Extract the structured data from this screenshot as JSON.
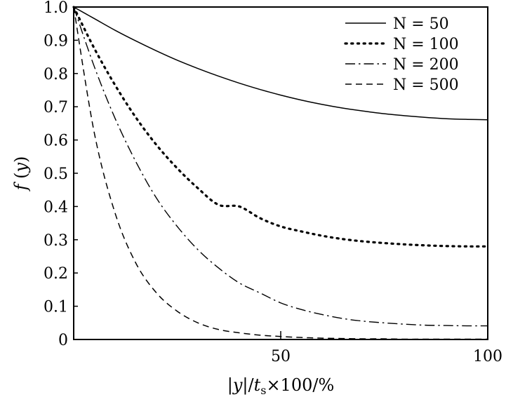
{
  "chart_data": {
    "type": "line",
    "xlabel": "|y|/ts × 100/%",
    "ylabel": "f (y)",
    "xlim": [
      0,
      100
    ],
    "ylim": [
      0,
      1.0
    ],
    "x_ticks": [
      "50",
      "100"
    ],
    "y_ticks": [
      "0",
      "0.1",
      "0.2",
      "0.3",
      "0.4",
      "0.5",
      "0.6",
      "0.7",
      "0.8",
      "0.9",
      "1.0"
    ],
    "legend_position": "top-right",
    "grid": false,
    "x": [
      0,
      5,
      10,
      15,
      20,
      25,
      30,
      35,
      40,
      45,
      50,
      55,
      60,
      65,
      70,
      75,
      80,
      85,
      90,
      95,
      100
    ],
    "series": [
      {
        "name": "N = 50",
        "style": "solid",
        "values": [
          1.0,
          0.965,
          0.93,
          0.898,
          0.868,
          0.84,
          0.815,
          0.792,
          0.771,
          0.752,
          0.735,
          0.72,
          0.707,
          0.696,
          0.687,
          0.679,
          0.673,
          0.668,
          0.664,
          0.662,
          0.661
        ]
      },
      {
        "name": "N = 100",
        "style": "dotted",
        "values": [
          1.0,
          0.875,
          0.765,
          0.668,
          0.585,
          0.515,
          0.455,
          0.405,
          0.4,
          0.365,
          0.34,
          0.325,
          0.312,
          0.302,
          0.295,
          0.29,
          0.286,
          0.283,
          0.281,
          0.28,
          0.28
        ]
      },
      {
        "name": "N = 200",
        "style": "dashdot",
        "values": [
          1.0,
          0.82,
          0.665,
          0.535,
          0.425,
          0.34,
          0.27,
          0.215,
          0.17,
          0.14,
          0.11,
          0.09,
          0.075,
          0.063,
          0.055,
          0.05,
          0.046,
          0.043,
          0.042,
          0.041,
          0.041
        ]
      },
      {
        "name": "N = 500",
        "style": "dashed",
        "values": [
          1.0,
          0.62,
          0.38,
          0.23,
          0.14,
          0.085,
          0.05,
          0.03,
          0.02,
          0.013,
          0.009,
          0.006,
          0.004,
          0.003,
          0.002,
          0.002,
          0.001,
          0.001,
          0.001,
          0.001,
          0.001
        ]
      }
    ]
  }
}
